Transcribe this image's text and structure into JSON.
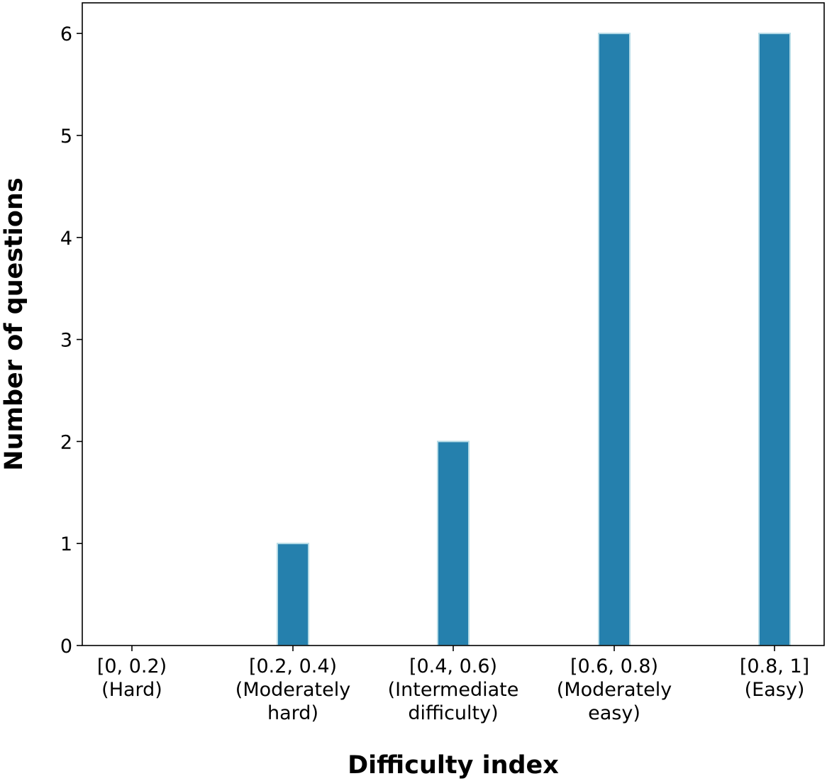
{
  "chart_data": {
    "type": "bar",
    "categories": [
      [
        "[0, 0.2)",
        "(Hard)"
      ],
      [
        "[0.2, 0.4)",
        "(Moderately",
        "hard)"
      ],
      [
        "[0.4, 0.6)",
        "(Intermediate",
        "difficulty)"
      ],
      [
        "[0.6, 0.8)",
        "(Moderately",
        "easy)"
      ],
      [
        "[0.8, 1]",
        "(Easy)"
      ]
    ],
    "values": [
      0,
      1,
      2,
      6,
      6
    ],
    "xlabel": "Difficulty index",
    "ylabel": "Number of questions",
    "ylim": [
      0,
      6.3
    ],
    "yticks": [
      0,
      1,
      2,
      3,
      4,
      5,
      6
    ],
    "grid": false,
    "bar_color": "#2580ad",
    "bar_edge_color": "#b5dbe6"
  }
}
